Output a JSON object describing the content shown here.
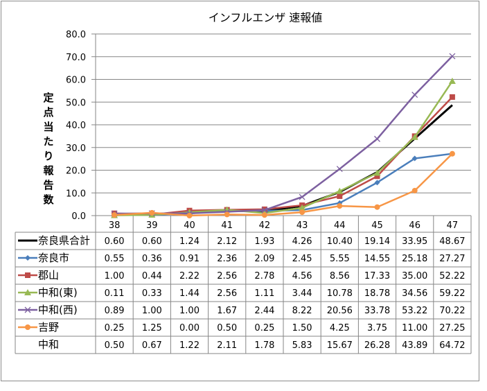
{
  "chart_data": {
    "type": "line",
    "title": "インフルエンザ 速報値",
    "xlabel": "",
    "ylabel": "定点当たり報告数",
    "ylim": [
      0,
      80
    ],
    "yticks": [
      "0.0",
      "10.0",
      "20.0",
      "30.0",
      "40.0",
      "50.0",
      "60.0",
      "70.0",
      "80.0"
    ],
    "grid": true,
    "legend": "data-table-left",
    "categories": [
      "38",
      "39",
      "40",
      "41",
      "42",
      "43",
      "44",
      "45",
      "46",
      "47"
    ],
    "series": [
      {
        "name": "奈良県合計",
        "color": "#000000",
        "marker": "none",
        "values": [
          "0.60",
          "0.60",
          "1.24",
          "2.12",
          "1.93",
          "4.26",
          "10.40",
          "19.14",
          "33.95",
          "48.67"
        ]
      },
      {
        "name": "奈良市",
        "color": "#4a7ebb",
        "marker": "diamond",
        "values": [
          "0.55",
          "0.36",
          "0.91",
          "2.36",
          "2.09",
          "2.45",
          "5.55",
          "14.55",
          "25.18",
          "27.27"
        ]
      },
      {
        "name": "郡山",
        "color": "#be4b48",
        "marker": "square",
        "values": [
          "1.00",
          "0.44",
          "2.22",
          "2.56",
          "2.78",
          "4.56",
          "8.56",
          "17.33",
          "35.00",
          "52.22"
        ]
      },
      {
        "name": "中和(東)",
        "color": "#98b954",
        "marker": "triangle",
        "values": [
          "0.11",
          "0.33",
          "1.44",
          "2.56",
          "1.11",
          "3.44",
          "10.78",
          "18.78",
          "34.56",
          "59.22"
        ]
      },
      {
        "name": "中和(西)",
        "color": "#7d60a0",
        "marker": "x",
        "values": [
          "0.89",
          "1.00",
          "1.00",
          "1.67",
          "2.44",
          "8.22",
          "20.56",
          "33.78",
          "53.22",
          "70.22"
        ]
      },
      {
        "name": "吉野",
        "color": "#f79646",
        "marker": "circle",
        "values": [
          "0.25",
          "1.25",
          "0.00",
          "0.50",
          "0.25",
          "1.50",
          "4.25",
          "3.75",
          "11.00",
          "27.25"
        ]
      },
      {
        "name": "中和",
        "color": null,
        "marker": "none",
        "values": [
          "0.50",
          "0.67",
          "1.22",
          "2.11",
          "1.78",
          "5.83",
          "15.67",
          "26.28",
          "43.89",
          "64.72"
        ]
      }
    ]
  }
}
